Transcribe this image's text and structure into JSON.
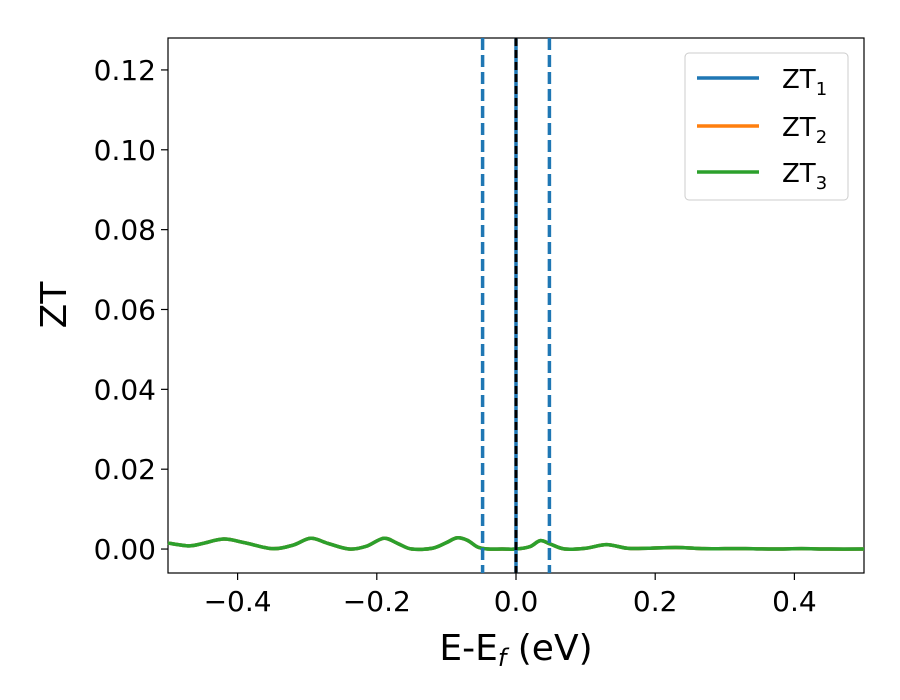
{
  "chart_data": {
    "type": "line",
    "title": "",
    "xlabel_main": "E-E",
    "xlabel_sub": "f",
    "xlabel_unit": " (eV)",
    "ylabel": "ZT",
    "xlim": [
      -0.5,
      0.5
    ],
    "ylim": [
      -0.006,
      0.128
    ],
    "x_ticks": [
      -0.4,
      -0.2,
      0.0,
      0.2,
      0.4
    ],
    "x_tick_labels": [
      "−0.4",
      "−0.2",
      "0.0",
      "0.2",
      "0.4"
    ],
    "y_ticks": [
      0.0,
      0.02,
      0.04,
      0.06,
      0.08,
      0.1,
      0.12
    ],
    "y_tick_labels": [
      "0.00",
      "0.02",
      "0.04",
      "0.06",
      "0.08",
      "0.10",
      "0.12"
    ],
    "grid": false,
    "legend_placement": "top-right",
    "series": [
      {
        "name": "ZT",
        "sub": "1",
        "color": "#1f77b4",
        "x": [
          -0.5,
          -0.47,
          -0.45,
          -0.42,
          -0.39,
          -0.35,
          -0.32,
          -0.295,
          -0.27,
          -0.24,
          -0.215,
          -0.19,
          -0.17,
          -0.15,
          -0.12,
          -0.1,
          -0.085,
          -0.07,
          -0.055,
          -0.04,
          -0.02,
          0.0,
          0.02,
          0.035,
          0.05,
          0.07,
          0.1,
          0.13,
          0.16,
          0.19,
          0.23,
          0.27,
          0.3,
          0.33,
          0.37,
          0.41,
          0.45,
          0.5
        ],
        "y": [
          0.0015,
          0.0008,
          0.0014,
          0.0025,
          0.0016,
          0.0001,
          0.001,
          0.0027,
          0.0014,
          0.0,
          0.0007,
          0.0027,
          0.0014,
          0.0,
          0.0002,
          0.0016,
          0.0028,
          0.0022,
          0.0005,
          0.0,
          0.0,
          0.0,
          0.0006,
          0.0021,
          0.0012,
          0.0,
          0.0002,
          0.0011,
          0.0002,
          0.0002,
          0.0004,
          0.0001,
          0.0001,
          0.0001,
          0.0,
          0.0001,
          0.0,
          0.0
        ]
      },
      {
        "name": "ZT",
        "sub": "2",
        "color": "#ff7f0e",
        "x": [
          -0.5,
          -0.47,
          -0.45,
          -0.42,
          -0.39,
          -0.35,
          -0.32,
          -0.295,
          -0.27,
          -0.24,
          -0.215,
          -0.19,
          -0.17,
          -0.15,
          -0.12,
          -0.1,
          -0.085,
          -0.07,
          -0.055,
          -0.04,
          -0.02,
          0.0,
          0.02,
          0.035,
          0.05,
          0.07,
          0.1,
          0.13,
          0.16,
          0.19,
          0.23,
          0.27,
          0.3,
          0.33,
          0.37,
          0.41,
          0.45,
          0.5
        ],
        "y": [
          0.0015,
          0.0008,
          0.0014,
          0.0025,
          0.0016,
          0.0001,
          0.001,
          0.0027,
          0.0014,
          0.0,
          0.0007,
          0.0027,
          0.0014,
          0.0,
          0.0002,
          0.0016,
          0.0028,
          0.0022,
          0.0005,
          0.0,
          0.0,
          0.0,
          0.0006,
          0.0021,
          0.0012,
          0.0,
          0.0002,
          0.0011,
          0.0002,
          0.0002,
          0.0004,
          0.0001,
          0.0001,
          0.0001,
          0.0,
          0.0001,
          0.0,
          0.0
        ]
      },
      {
        "name": "ZT",
        "sub": "3",
        "color": "#2ca02c",
        "x": [
          -0.5,
          -0.47,
          -0.45,
          -0.42,
          -0.39,
          -0.35,
          -0.32,
          -0.295,
          -0.27,
          -0.24,
          -0.215,
          -0.19,
          -0.17,
          -0.15,
          -0.12,
          -0.1,
          -0.085,
          -0.07,
          -0.055,
          -0.04,
          -0.02,
          0.0,
          0.02,
          0.035,
          0.05,
          0.07,
          0.1,
          0.13,
          0.16,
          0.19,
          0.23,
          0.27,
          0.3,
          0.33,
          0.37,
          0.41,
          0.45,
          0.5
        ],
        "y": [
          0.0015,
          0.0008,
          0.0014,
          0.0025,
          0.0016,
          0.0001,
          0.001,
          0.0027,
          0.0014,
          0.0,
          0.0007,
          0.0027,
          0.0014,
          0.0,
          0.0002,
          0.0016,
          0.0028,
          0.0022,
          0.0005,
          0.0,
          0.0,
          0.0,
          0.0006,
          0.0021,
          0.0012,
          0.0,
          0.0002,
          0.0011,
          0.0002,
          0.0002,
          0.0004,
          0.0001,
          0.0001,
          0.0001,
          0.0,
          0.0001,
          0.0,
          0.0
        ]
      }
    ],
    "vlines": [
      {
        "x": -0.048,
        "style": "dashed",
        "color": "#1f77b4"
      },
      {
        "x": 0.048,
        "style": "dashed",
        "color": "#1f77b4"
      },
      {
        "x": 0.0,
        "style": "solid",
        "color": "#1f77b4"
      },
      {
        "x": 0.0,
        "style": "dashed",
        "color": "#000000"
      }
    ]
  }
}
